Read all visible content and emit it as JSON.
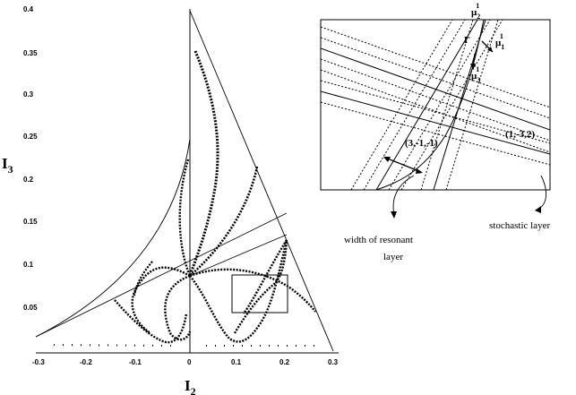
{
  "axes": {
    "xlabel_main": "I",
    "xlabel_sub": "2",
    "ylabel_main": "I",
    "ylabel_sub": "3",
    "xticks": [
      "-0.3",
      "-0.2",
      "-0.1",
      "0",
      "0.1",
      "0.2",
      "0.3"
    ],
    "yticks": [
      "0.4",
      "0.35",
      "0.3",
      "0.25",
      "0.2",
      "0.15",
      "0.1",
      "0.05"
    ]
  },
  "inset": {
    "resonance_a": "(1,-3,2)",
    "resonance_b": "(3,-1,-1)",
    "gamma_main": "Γ",
    "gamma_sup": "",
    "mu2_main": "μ",
    "mu2_sub": "2",
    "mu2_sup": "1",
    "mu1_main": "μ",
    "mu1_sub": "1",
    "mu1_sup": "1",
    "mu3_main": "μ",
    "mu3_sub": "3",
    "mu3_sup": "1"
  },
  "captions": {
    "width_line1": "width of resonant",
    "width_line2": "layer",
    "stochastic": "stochastic layer"
  }
}
